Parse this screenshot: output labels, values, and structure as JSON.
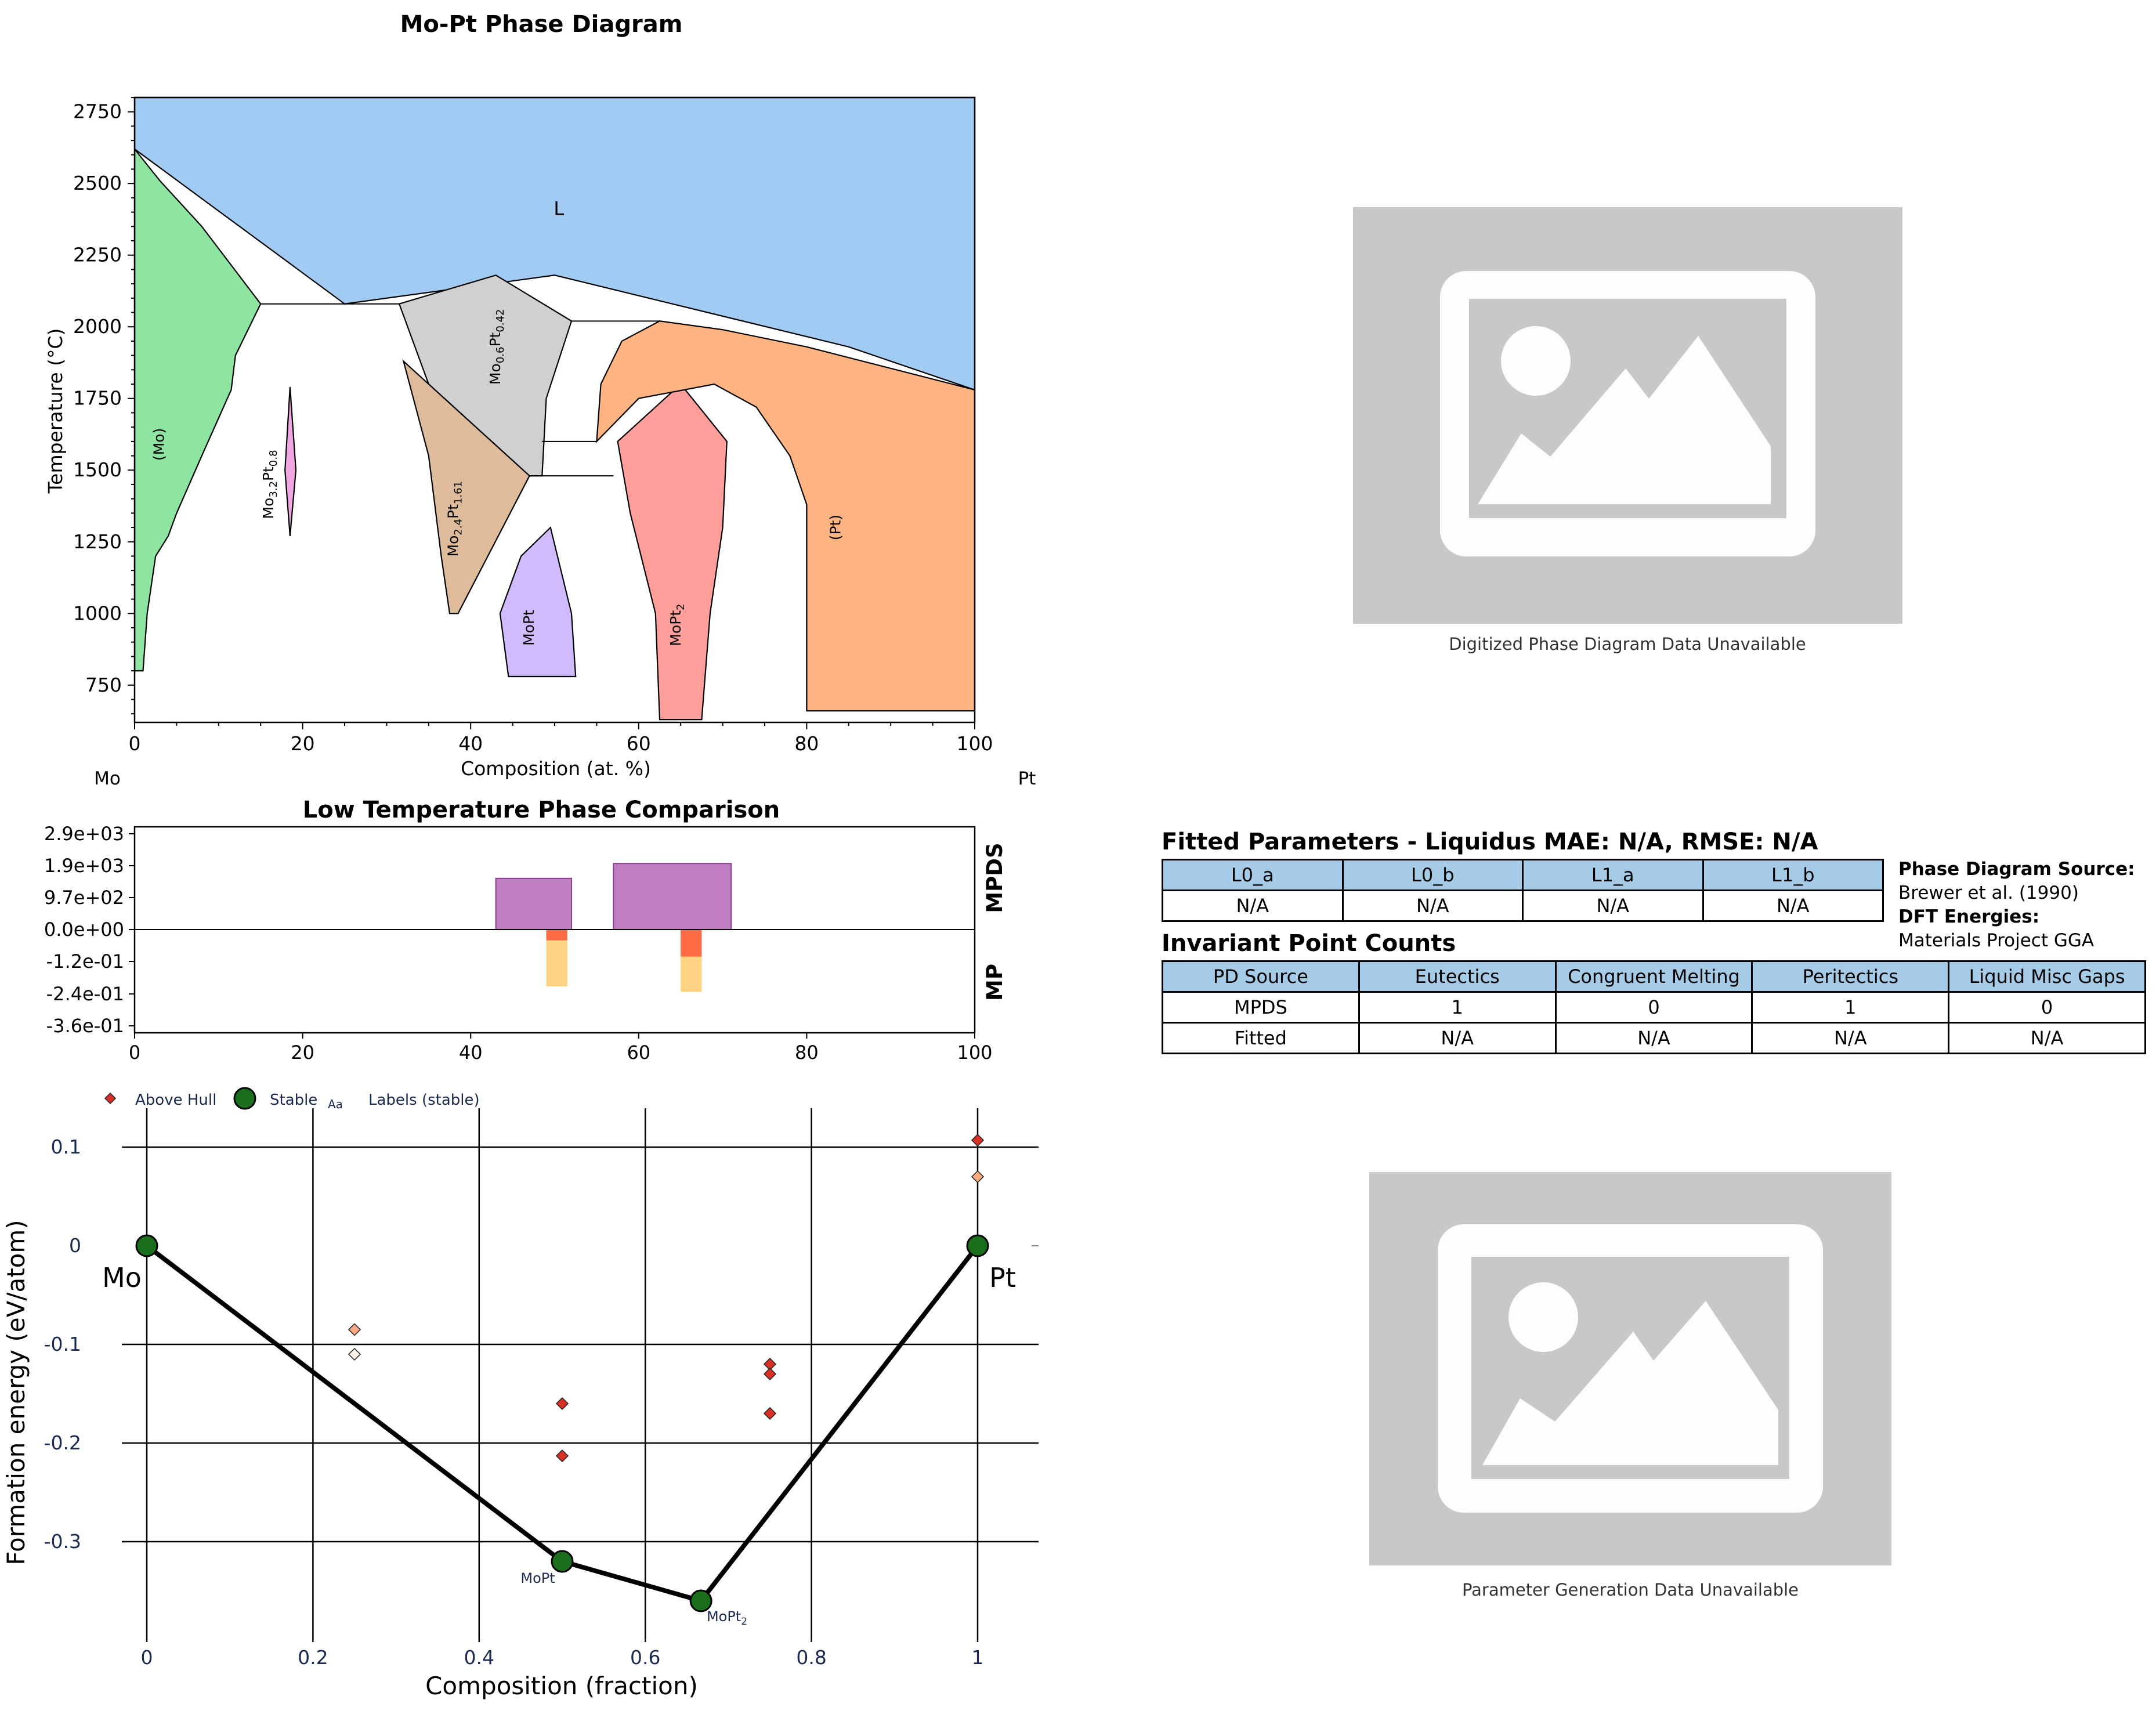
{
  "phase_diagram": {
    "title": "Mo-Pt Phase Diagram",
    "xlabel": "Composition (at. %)",
    "ylabel": "Temperature (°C)",
    "left_element": "Mo",
    "right_element": "Pt",
    "phase_labels": [
      "L",
      "(Mo)",
      "Mo3.2Pt0.8",
      "Mo0.6Pt0.42",
      "Mo2.4Pt1.61",
      "MoPt",
      "MoPt2",
      "(Pt)"
    ]
  },
  "low_temp_comparison": {
    "title": "Low Temperature Phase Comparison",
    "row_labels": [
      "MPDS",
      "MP"
    ]
  },
  "hull": {
    "xlabel": "Composition (fraction)",
    "ylabel": "Formation energy (eV/atom)",
    "legend": [
      "Above Hull",
      "Stable",
      "Labels (stable)"
    ],
    "legend_aa": "Aa",
    "end_labels": [
      "Mo",
      "Pt"
    ],
    "point_labels": [
      "MoPt",
      "MoPt2"
    ]
  },
  "placeholders": {
    "top_caption": "Digitized Phase Diagram Data Unavailable",
    "bottom_caption": "Parameter Generation Data Unavailable"
  },
  "fitted": {
    "title": "Fitted Parameters - Liquidus MAE: N/A, RMSE: N/A",
    "headers": [
      "L0_a",
      "L0_b",
      "L1_a",
      "L1_b"
    ],
    "values": [
      "N/A",
      "N/A",
      "N/A",
      "N/A"
    ]
  },
  "source": {
    "pd_label": "Phase Diagram Source:",
    "pd_value": "Brewer et al. (1990)",
    "dft_label": "DFT Energies:",
    "dft_value": "Materials Project GGA"
  },
  "invariant": {
    "title": "Invariant Point Counts",
    "headers": [
      "PD Source",
      "Eutectics",
      "Congruent Melting",
      "Peritectics",
      "Liquid Misc Gaps"
    ],
    "rows": [
      [
        "MPDS",
        "1",
        "0",
        "1",
        "0"
      ],
      [
        "Fitted",
        "N/A",
        "N/A",
        "N/A",
        "N/A"
      ]
    ]
  },
  "chart_data": [
    {
      "type": "area",
      "title": "Mo-Pt Phase Diagram",
      "xlabel": "Composition (at. %)",
      "ylabel": "Temperature (°C)",
      "xlim": [
        0,
        100
      ],
      "ylim": [
        620,
        2800
      ],
      "xticks": [
        0,
        20,
        40,
        60,
        80,
        100
      ],
      "yticks": [
        750,
        1000,
        1250,
        1500,
        1750,
        2000,
        2250,
        2500,
        2750
      ],
      "regions": [
        {
          "name": "L",
          "color": "#a1cbf2",
          "points": [
            [
              0,
              2800
            ],
            [
              100,
              2800
            ],
            [
              100,
              1780
            ],
            [
              85,
              1930
            ],
            [
              50,
              2180
            ],
            [
              25,
              2080
            ],
            [
              0,
              2620
            ]
          ]
        },
        {
          "name": "(Mo)",
          "color": "#8de5a1",
          "points": [
            [
              0,
              2620
            ],
            [
              3,
              2510
            ],
            [
              8,
              2350
            ],
            [
              15,
              2080
            ],
            [
              12,
              1900
            ],
            [
              11.5,
              1780
            ],
            [
              8,
              1550
            ],
            [
              5,
              1350
            ],
            [
              4,
              1270
            ],
            [
              2.5,
              1200
            ],
            [
              1.5,
              1000
            ],
            [
              1,
              800
            ],
            [
              0,
              800
            ]
          ]
        },
        {
          "name": "Mo3.2Pt0.8",
          "color": "#f0a6e0",
          "points": [
            [
              18.5,
              1790
            ],
            [
              19.2,
              1500
            ],
            [
              18.5,
              1270
            ],
            [
              17.9,
              1500
            ]
          ]
        },
        {
          "name": "Mo0.6Pt0.42",
          "color": "#d0d0d0",
          "points": [
            [
              31.5,
              2080
            ],
            [
              43,
              2180
            ],
            [
              52,
              2020
            ],
            [
              49,
              1750
            ],
            [
              48.5,
              1480
            ],
            [
              47,
              1480
            ],
            [
              35,
              1800
            ]
          ]
        },
        {
          "name": "Mo2.4Pt1.61",
          "color": "#debb9b",
          "points": [
            [
              32,
              1880
            ],
            [
              47,
              1480
            ],
            [
              38.5,
              1000
            ],
            [
              37.5,
              1000
            ],
            [
              36.5,
              1200
            ],
            [
              35,
              1550
            ]
          ]
        },
        {
          "name": "MoPt",
          "color": "#d0bbff",
          "points": [
            [
              49.5,
              1300
            ],
            [
              52,
              1000
            ],
            [
              52.5,
              780
            ],
            [
              44.5,
              780
            ],
            [
              43.5,
              1000
            ],
            [
              46,
              1200
            ]
          ]
        },
        {
          "name": "MoPt2",
          "color": "#ff9f9b",
          "points": [
            [
              65,
              1800
            ],
            [
              70.5,
              1600
            ],
            [
              70,
              1300
            ],
            [
              68.5,
              1000
            ],
            [
              67.5,
              630
            ],
            [
              62.5,
              630
            ],
            [
              62,
              1000
            ],
            [
              59,
              1350
            ],
            [
              57.5,
              1600
            ]
          ]
        },
        {
          "name": "(Pt)",
          "color": "#ffb482",
          "points": [
            [
              100,
              1780
            ],
            [
              100,
              660
            ],
            [
              80,
              660
            ],
            [
              80,
              1380
            ],
            [
              78,
              1550
            ],
            [
              74,
              1720
            ],
            [
              69,
              1800
            ],
            [
              60,
              1750
            ],
            [
              55,
              1600
            ],
            [
              55.5,
              1800
            ],
            [
              58,
              1950
            ],
            [
              62.5,
              2020
            ],
            [
              70,
              1990
            ],
            [
              80,
              1930
            ]
          ]
        }
      ]
    },
    {
      "type": "bar",
      "title": "Low Temperature Phase Comparison",
      "xlim": [
        0,
        100
      ],
      "xticks": [
        0,
        20,
        40,
        60,
        80,
        100
      ],
      "yticks": [
        "2.9e+03",
        "1.9e+03",
        "9.7e+02",
        "0.0e+00",
        "-1.2e-01",
        "-2.4e-01",
        "-3.6e-01"
      ],
      "mpds_bars": [
        {
          "x0": 43,
          "x1": 52,
          "value": 1550
        },
        {
          "x0": 57,
          "x1": 71,
          "value": 2000
        }
      ],
      "mp_bars": [
        {
          "x0": 49,
          "x1": 51.5,
          "hull": -0.04,
          "min": -0.21
        },
        {
          "x0": 65,
          "x1": 67.5,
          "hull": -0.1,
          "min": -0.23
        }
      ]
    },
    {
      "type": "scatter",
      "xlabel": "Composition (fraction)",
      "ylabel": "Formation energy (eV/atom)",
      "xlim": [
        -0.015,
        1.07
      ],
      "ylim": [
        -0.39,
        0.14
      ],
      "xticks": [
        0,
        0.2,
        0.4,
        0.6,
        0.8,
        1
      ],
      "yticks": [
        0.1,
        0,
        -0.1,
        -0.2,
        -0.3
      ],
      "stable": [
        [
          0,
          0
        ],
        [
          0.5,
          -0.32
        ],
        [
          0.667,
          -0.36
        ],
        [
          1,
          0
        ]
      ],
      "above_hull": [
        {
          "x": 0.25,
          "y": -0.085,
          "shade": "light"
        },
        {
          "x": 0.25,
          "y": -0.11,
          "shade": "pale"
        },
        {
          "x": 0.5,
          "y": -0.16,
          "shade": "dark"
        },
        {
          "x": 0.5,
          "y": -0.213,
          "shade": "dark"
        },
        {
          "x": 0.75,
          "y": -0.12,
          "shade": "dark"
        },
        {
          "x": 0.75,
          "y": -0.13,
          "shade": "dark"
        },
        {
          "x": 0.75,
          "y": -0.17,
          "shade": "dark"
        },
        {
          "x": 1,
          "y": 0.107,
          "shade": "dark"
        },
        {
          "x": 1,
          "y": 0.07,
          "shade": "light"
        }
      ]
    }
  ]
}
